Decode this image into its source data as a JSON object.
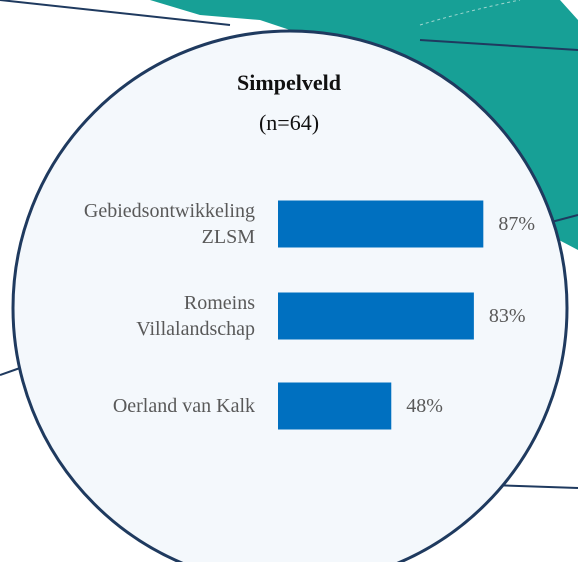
{
  "chart_data": {
    "type": "bar",
    "orientation": "horizontal",
    "title": "Simpelveld",
    "subtitle": "(n=64)",
    "categories": [
      "Gebiedsontwikkeling\nZLSM",
      "Romeins\nVillalandschap",
      "Oerland van Kalk"
    ],
    "values": [
      87,
      83,
      48
    ],
    "value_labels": [
      "87%",
      "83%",
      "48%"
    ],
    "color": "#0070c0"
  }
}
